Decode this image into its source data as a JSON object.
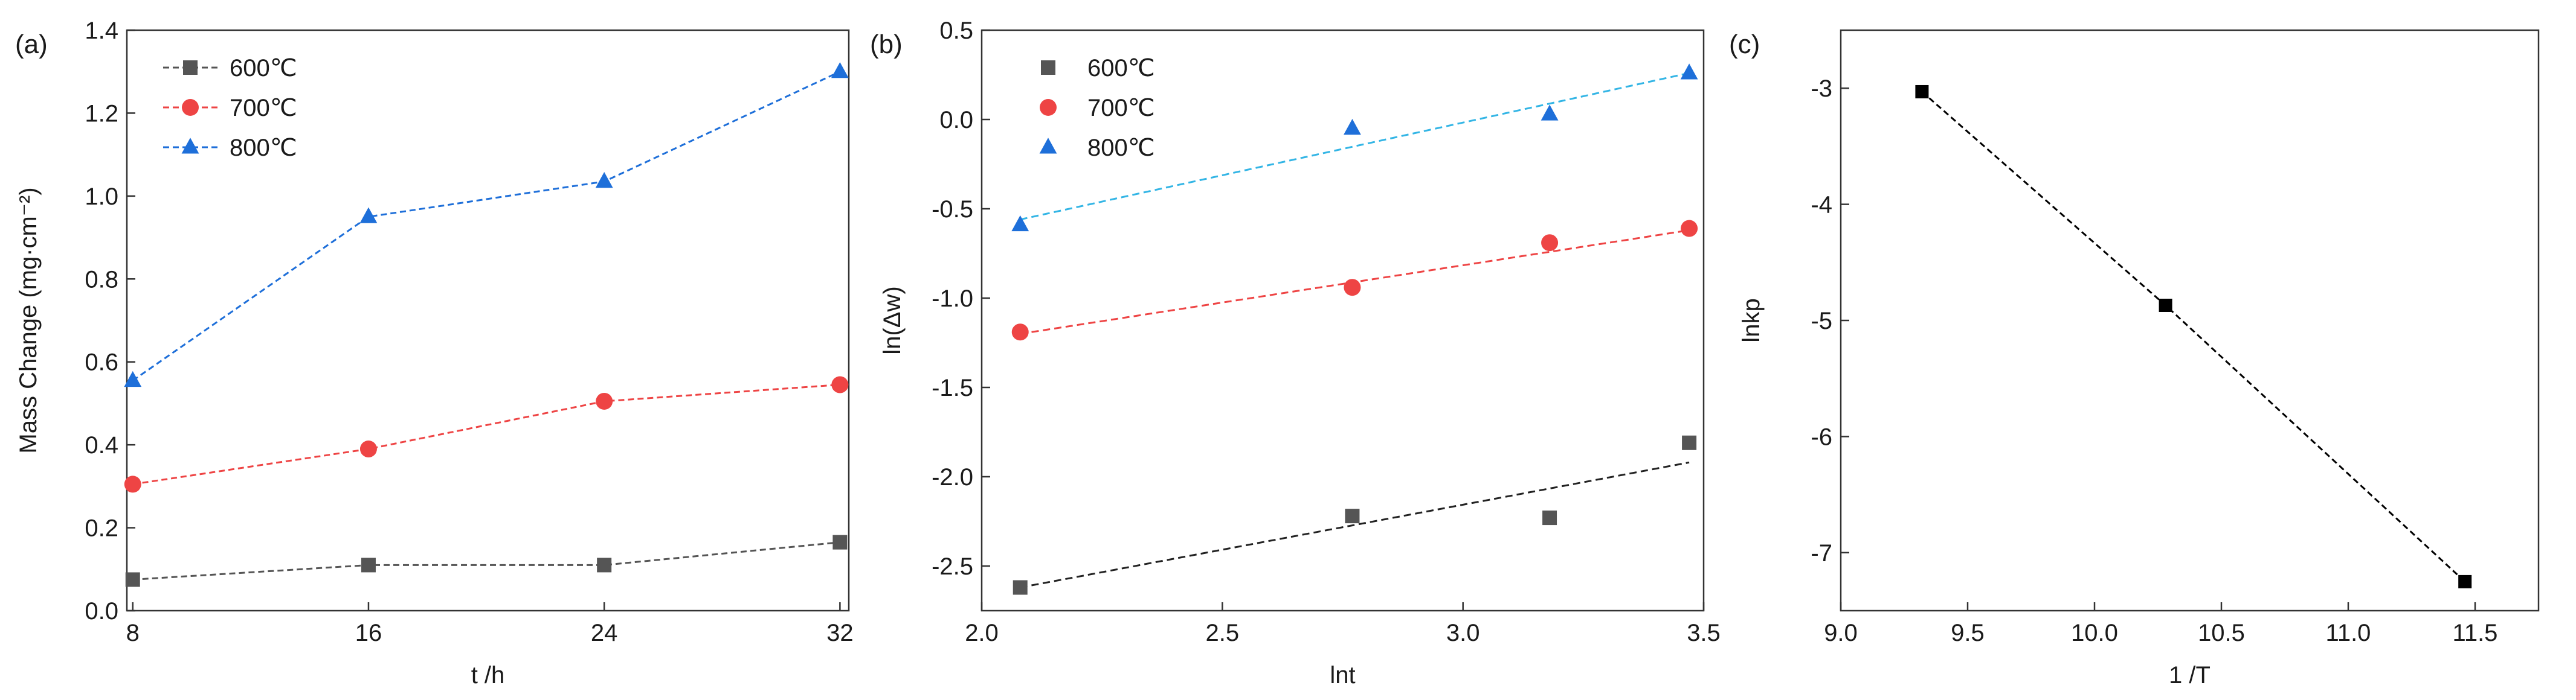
{
  "chart_data": [
    {
      "panel_label": "(a)",
      "type": "line",
      "title": "",
      "xlabel": "t /h",
      "ylabel": "Mass Change (mg·cm⁻²)",
      "xlim": [
        7.8,
        32.3
      ],
      "ylim": [
        0,
        1.4
      ],
      "xticks": [
        8,
        16,
        24,
        32
      ],
      "xtick_labels": [
        "8",
        "16",
        "24",
        "32"
      ],
      "yticks": [
        0,
        0.2,
        0.4,
        0.6,
        0.8,
        1.0,
        1.2,
        1.4
      ],
      "ytick_labels": [
        "0.0",
        "0.2",
        "0.4",
        "0.6",
        "0.8",
        "1.0",
        "1.2",
        "1.4"
      ],
      "legend_position": "top-left",
      "series": [
        {
          "name": "600℃",
          "color": "#555555",
          "marker": "square",
          "x": [
            8,
            16,
            24,
            32
          ],
          "values": [
            0.075,
            0.11,
            0.11,
            0.165
          ]
        },
        {
          "name": "700℃",
          "color": "#ee4444",
          "marker": "circle",
          "x": [
            8,
            16,
            24,
            32
          ],
          "values": [
            0.305,
            0.39,
            0.505,
            0.545
          ]
        },
        {
          "name": "800℃",
          "color": "#1e6fd9",
          "marker": "triangle",
          "x": [
            8,
            16,
            24,
            32
          ],
          "values": [
            0.555,
            0.95,
            1.035,
            1.3
          ]
        }
      ]
    },
    {
      "panel_label": "(b)",
      "type": "scatter",
      "title": "",
      "xlabel": "lnt",
      "ylabel": "ln(Δw)",
      "xlim": [
        2.0,
        3.5
      ],
      "ylim": [
        -2.75,
        0.5
      ],
      "xticks": [
        2.0,
        2.5,
        3.0,
        3.5
      ],
      "xtick_labels": [
        "2.0",
        "2.5",
        "3.0",
        "3.5"
      ],
      "yticks": [
        -2.5,
        -2.0,
        -1.5,
        -1.0,
        -0.5,
        0.0,
        0.5
      ],
      "ytick_labels": [
        "-2.5",
        "-2.0",
        "-1.5",
        "-1.0",
        "-0.5",
        "0.0",
        "0.5"
      ],
      "legend_position": "top-left",
      "series": [
        {
          "name": "600℃",
          "color": "#555555",
          "fit_color": "#222222",
          "marker": "square",
          "x": [
            2.08,
            2.77,
            3.18,
            3.47
          ],
          "values": [
            -2.62,
            -2.22,
            -2.23,
            -1.81
          ],
          "fit": [
            [
              2.08,
              -2.62
            ],
            [
              3.47,
              -1.92
            ]
          ]
        },
        {
          "name": "700℃",
          "color": "#ee4444",
          "fit_color": "#ee4444",
          "marker": "circle",
          "x": [
            2.08,
            2.77,
            3.18,
            3.47
          ],
          "values": [
            -1.19,
            -0.94,
            -0.69,
            -0.61
          ],
          "fit": [
            [
              2.08,
              -1.2
            ],
            [
              3.47,
              -0.62
            ]
          ]
        },
        {
          "name": "800℃",
          "color": "#1e6fd9",
          "fit_color": "#33b5e5",
          "marker": "triangle",
          "x": [
            2.08,
            2.77,
            3.18,
            3.47
          ],
          "values": [
            -0.59,
            -0.05,
            0.03,
            0.26
          ],
          "fit": [
            [
              2.08,
              -0.56
            ],
            [
              3.47,
              0.26
            ]
          ]
        }
      ]
    },
    {
      "panel_label": "(c)",
      "type": "line",
      "title": "",
      "xlabel": "1 /T",
      "ylabel": "lnkp",
      "xlim": [
        9.0,
        11.75
      ],
      "ylim": [
        -7.5,
        -2.5
      ],
      "xticks": [
        9.0,
        9.5,
        10.0,
        10.5,
        11.0,
        11.5
      ],
      "xtick_labels": [
        "9.0",
        "9.5",
        "10.0",
        "10.5",
        "11.0",
        "11.5"
      ],
      "yticks": [
        -7,
        -6,
        -5,
        -4,
        -3
      ],
      "ytick_labels": [
        "-7",
        "-6",
        "-5",
        "-4",
        "-3"
      ],
      "series": [
        {
          "name": "lnkp",
          "color": "#000000",
          "marker": "square",
          "x": [
            9.32,
            10.28,
            11.46
          ],
          "values": [
            -3.03,
            -4.87,
            -7.25
          ]
        }
      ]
    }
  ]
}
